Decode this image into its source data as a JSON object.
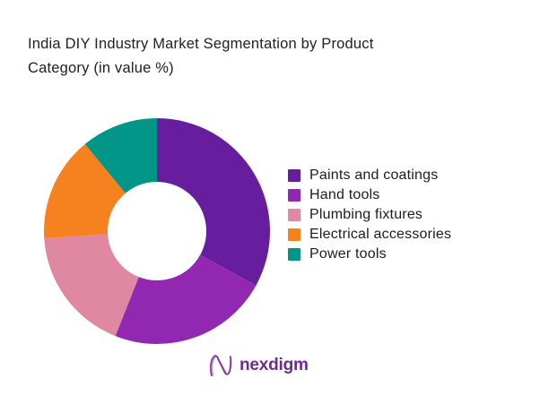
{
  "chart_data": {
    "type": "donut",
    "title": "India DIY Industry Market Segmentation by Product Category (in value %)",
    "categories": [
      "Paints and coatings",
      "Hand tools",
      "Plumbing fixtures",
      "Electrical accessories",
      "Power tools"
    ],
    "values": [
      33,
      23,
      18,
      15,
      11
    ],
    "colors": [
      "#661E9E",
      "#9228B2",
      "#E087A2",
      "#F5821F",
      "#019688"
    ],
    "unit": "% of market value",
    "legend_position": "right",
    "start_angle_deg": 0,
    "direction": "clockwise",
    "outer_radius_px": 126,
    "inner_radius_px": 55,
    "data_labels_shown": false
  },
  "brand": {
    "logo_text": "nexdigm",
    "logo_color": "#6F2A92"
  },
  "page": {
    "background_color": "#ffffff",
    "title_color": "#212121"
  }
}
